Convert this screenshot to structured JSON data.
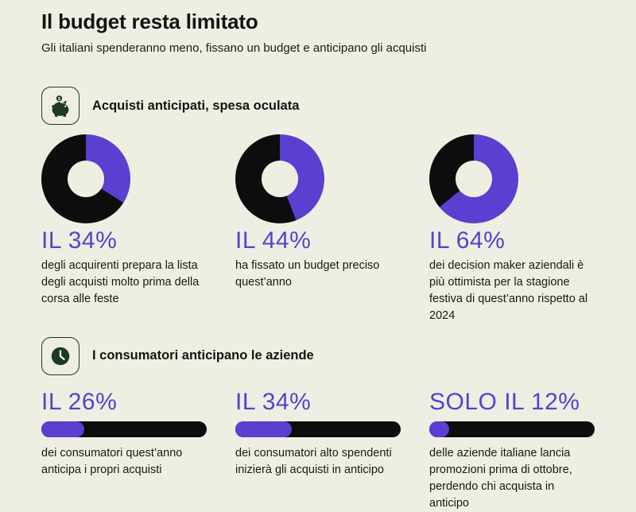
{
  "page": {
    "title": "Il budget resta limitato",
    "subtitle": "Gli italiani spenderanno meno, fissano un budget e anticipano gli acquisti"
  },
  "colors": {
    "background": "#EEEFE2",
    "accent": "#5A3FD0",
    "dark": "#0D0D0D",
    "icon_green": "#1E3A26"
  },
  "chart_data": [
    {
      "type": "pie",
      "subtype": "donut-progress-group",
      "section_title": "Acquisti anticipati, spesa oculata",
      "section_icon": "piggy-bank-icon",
      "legend_position": "none",
      "value_range": [
        0,
        100
      ],
      "colors": {
        "value": "#5A3FD0",
        "remainder": "#0D0D0D",
        "hole": "#EEEFE2"
      },
      "items": [
        {
          "stat_label": "IL 34%",
          "value": 34,
          "description": "degli acquirenti prepara la lista degli acquisti molto prima della corsa alle feste"
        },
        {
          "stat_label": "IL 44%",
          "value": 44,
          "description": "ha fissato un budget preciso quest’anno"
        },
        {
          "stat_label": "IL 64%",
          "value": 64,
          "description": "dei decision maker aziendali è più ottimista per la stagione festiva di quest’anno rispetto al 2024"
        }
      ]
    },
    {
      "type": "bar",
      "subtype": "horizontal-progress-group",
      "section_title": "I consumatori anticipano le aziende",
      "section_icon": "clock-icon",
      "legend_position": "none",
      "xlim": [
        0,
        100
      ],
      "colors": {
        "value": "#5A3FD0",
        "track": "#0D0D0D"
      },
      "items": [
        {
          "stat_label": "IL 26%",
          "value": 26,
          "description": "dei consumatori quest’anno anticipa i propri acquisti"
        },
        {
          "stat_label": "IL 34%",
          "value": 34,
          "description": "dei consumatori alto spendenti inizierà gli acquisti in anticipo"
        },
        {
          "stat_label": "SOLO IL 12%",
          "value": 12,
          "description": "delle aziende italiane lancia promozioni prima di ottobre, perdendo chi acquista in anticipo"
        }
      ]
    }
  ]
}
